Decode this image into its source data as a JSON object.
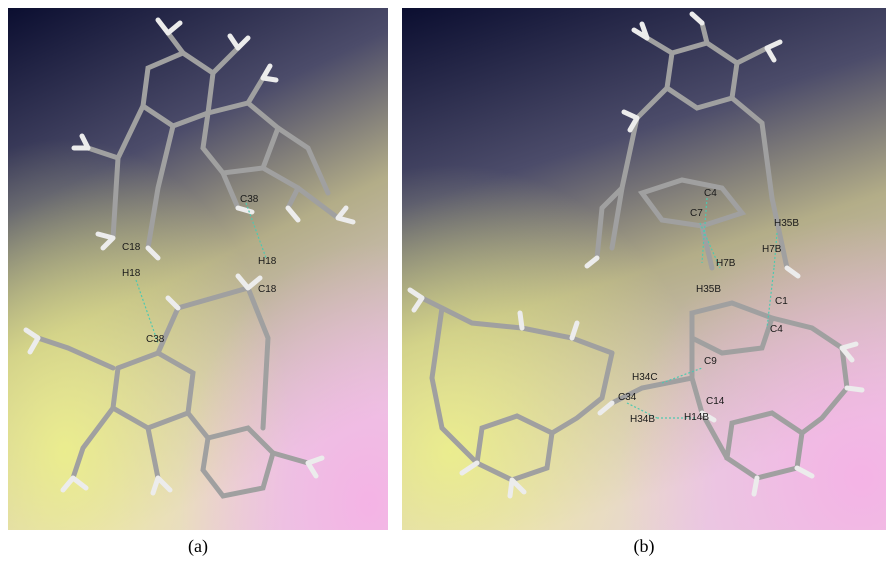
{
  "panels": [
    {
      "caption": "(a)",
      "labels": [
        "C38",
        "C18",
        "H18",
        "H18",
        "C18",
        "C38"
      ]
    },
    {
      "caption": "(b)",
      "labels": [
        "C4",
        "C7",
        "H35B",
        "H7B",
        "H7B",
        "H35B",
        "C1",
        "C4",
        "H34C",
        "C9",
        "C34",
        "C14",
        "H34B",
        "H14B"
      ]
    }
  ],
  "colors": {
    "bond": "#9a9a9a",
    "hydrogen": "#e8e8e8",
    "contact": "#4ec9b0",
    "bg_top": "#0c0f33",
    "bg_mid": "#c3b98a",
    "bg_bottom_left": "#e8f08a",
    "bg_bottom_right": "#f0b8e8"
  }
}
